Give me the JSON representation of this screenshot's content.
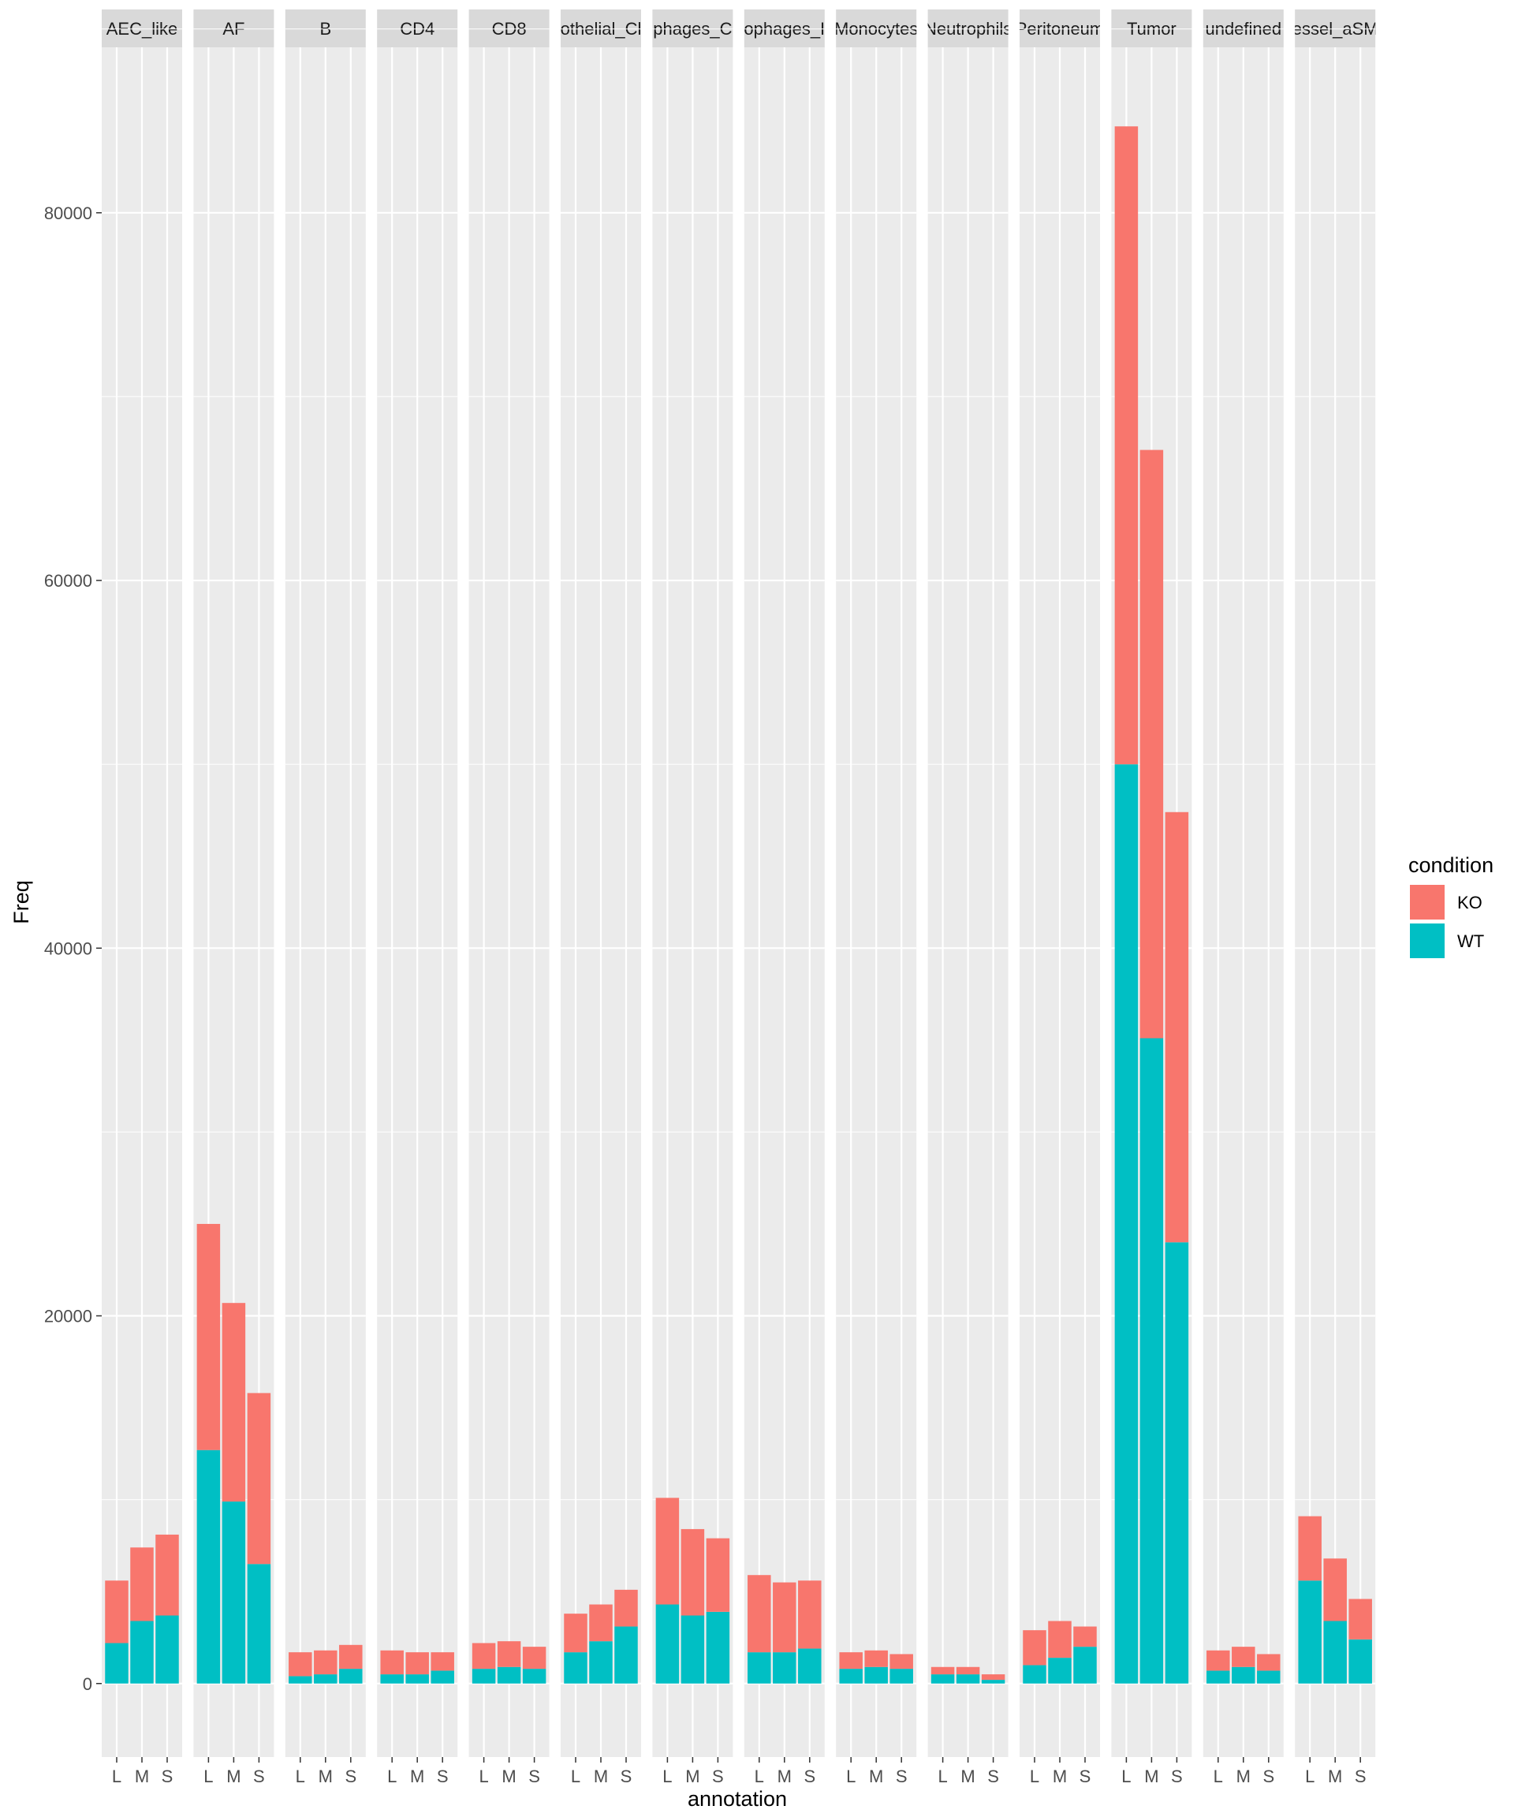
{
  "chart_data": {
    "type": "bar",
    "stacked": true,
    "faceted": true,
    "xlabel": "annotation",
    "ylabel": "Freq",
    "ylim": [
      -4000,
      89000
    ],
    "y_ticks": [
      0,
      20000,
      40000,
      60000,
      80000
    ],
    "y_tick_labels": [
      "0",
      "20000",
      "40000",
      "60000",
      "80000"
    ],
    "categories": [
      "L",
      "M",
      "S"
    ],
    "legend": {
      "title": "condition",
      "position": "right",
      "items": [
        {
          "name": "KO",
          "color": "#F8766D"
        },
        {
          "name": "WT",
          "color": "#00BFC4"
        }
      ]
    },
    "series_order": [
      "WT",
      "KO"
    ],
    "colors": {
      "KO": "#F8766D",
      "WT": "#00BFC4"
    },
    "grid": true,
    "panel_background": "#EBEBEB",
    "strip_background": "#D9D9D9",
    "facets": [
      {
        "label": "AEC_like",
        "WT": [
          2200,
          3400,
          3700
        ],
        "KO": [
          3400,
          4000,
          4400
        ]
      },
      {
        "label": "AF",
        "WT": [
          12700,
          9900,
          6500
        ],
        "KO": [
          12300,
          10800,
          9300
        ]
      },
      {
        "label": "B",
        "WT": [
          400,
          500,
          800
        ],
        "KO": [
          1300,
          1300,
          1300
        ]
      },
      {
        "label": "CD4",
        "WT": [
          500,
          500,
          700
        ],
        "KO": [
          1300,
          1200,
          1000
        ]
      },
      {
        "label": "CD8",
        "WT": [
          800,
          900,
          800
        ],
        "KO": [
          1400,
          1400,
          1200
        ]
      },
      {
        "label": "othelial_Cl",
        "WT": [
          1700,
          2300,
          3100
        ],
        "KO": [
          2100,
          2000,
          2000
        ]
      },
      {
        "label": "phages_C",
        "WT": [
          4300,
          3700,
          3900
        ],
        "KO": [
          5800,
          4700,
          4000
        ]
      },
      {
        "label": "ophages_I",
        "WT": [
          1700,
          1700,
          1900
        ],
        "KO": [
          4200,
          3800,
          3700
        ]
      },
      {
        "label": "Monocytes",
        "WT": [
          800,
          900,
          800
        ],
        "KO": [
          900,
          900,
          800
        ]
      },
      {
        "label": "Neutrophils",
        "WT": [
          500,
          500,
          200
        ],
        "KO": [
          400,
          400,
          300
        ]
      },
      {
        "label": "Peritoneum",
        "WT": [
          1000,
          1400,
          2000
        ],
        "KO": [
          1900,
          2000,
          1100
        ]
      },
      {
        "label": "Tumor",
        "WT": [
          50000,
          35100,
          24000
        ],
        "KO": [
          34700,
          32000,
          23400
        ]
      },
      {
        "label": "undefined",
        "WT": [
          700,
          900,
          700
        ],
        "KO": [
          1100,
          1100,
          900
        ]
      },
      {
        "label": "essel_aSM",
        "WT": [
          5600,
          3400,
          2400
        ],
        "KO": [
          3500,
          3400,
          2200
        ]
      }
    ]
  }
}
